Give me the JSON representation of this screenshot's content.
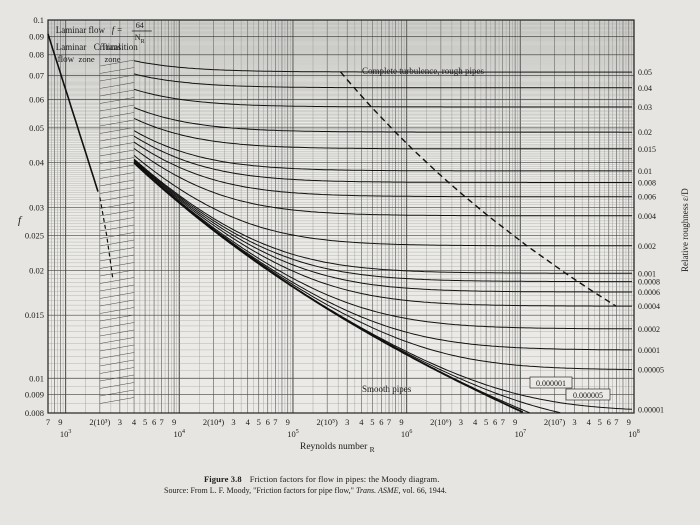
{
  "chart_data": {
    "type": "line",
    "title": "",
    "xlabel": "Reynolds number N_R",
    "xlabel_main": "Reynolds number ",
    "xlabel_sub": "R",
    "ylabel": "f",
    "right_label": "Relative roughness ε/D",
    "x_scale": "log",
    "y_scale": "log",
    "xlim": [
      700,
      100000000
    ],
    "ylim": [
      0.008,
      0.1
    ],
    "grid": true,
    "y_ticks": [
      {
        "value": 0.1,
        "label": "0.1"
      },
      {
        "value": 0.09,
        "label": "0.09"
      },
      {
        "value": 0.08,
        "label": "0.08"
      },
      {
        "value": 0.07,
        "label": "0.07"
      },
      {
        "value": 0.06,
        "label": "0.06"
      },
      {
        "value": 0.05,
        "label": "0.05"
      },
      {
        "value": 0.04,
        "label": "0.04"
      },
      {
        "value": 0.03,
        "label": "0.03"
      },
      {
        "value": 0.025,
        "label": "0.025"
      },
      {
        "value": 0.02,
        "label": "0.02"
      },
      {
        "value": 0.015,
        "label": "0.015"
      },
      {
        "value": 0.01,
        "label": "0.01"
      },
      {
        "value": 0.009,
        "label": "0.009"
      },
      {
        "value": 0.008,
        "label": "0.008"
      }
    ],
    "x_decade_labels": [
      {
        "value": 1000,
        "base": "10",
        "exp": "3"
      },
      {
        "value": 10000,
        "base": "10",
        "exp": "4"
      },
      {
        "value": 100000,
        "base": "10",
        "exp": "5"
      },
      {
        "value": 1000000,
        "base": "10",
        "exp": "6"
      },
      {
        "value": 10000000,
        "base": "10",
        "exp": "7"
      },
      {
        "value": 100000000,
        "base": "10",
        "exp": "8"
      }
    ],
    "x_minor_labels": [
      {
        "value": 700,
        "label": "7"
      },
      {
        "value": 900,
        "label": "9"
      },
      {
        "value": 2000,
        "label": "2(10³)"
      },
      {
        "value": 3000,
        "label": "3"
      },
      {
        "value": 4000,
        "label": "4"
      },
      {
        "value": 5000,
        "label": "5"
      },
      {
        "value": 6000,
        "label": "6"
      },
      {
        "value": 7000,
        "label": "7"
      },
      {
        "value": 9000,
        "label": "9"
      },
      {
        "value": 20000,
        "label": "2(10⁴)"
      },
      {
        "value": 30000,
        "label": "3"
      },
      {
        "value": 40000,
        "label": "4"
      },
      {
        "value": 50000,
        "label": "5"
      },
      {
        "value": 60000,
        "label": "6"
      },
      {
        "value": 70000,
        "label": "7"
      },
      {
        "value": 90000,
        "label": "9"
      },
      {
        "value": 200000,
        "label": "2(10⁵)"
      },
      {
        "value": 300000,
        "label": "3"
      },
      {
        "value": 400000,
        "label": "4"
      },
      {
        "value": 500000,
        "label": "5"
      },
      {
        "value": 600000,
        "label": "6"
      },
      {
        "value": 700000,
        "label": "7"
      },
      {
        "value": 900000,
        "label": "9"
      },
      {
        "value": 2000000,
        "label": "2(10⁶)"
      },
      {
        "value": 3000000,
        "label": "3"
      },
      {
        "value": 4000000,
        "label": "4"
      },
      {
        "value": 5000000,
        "label": "5"
      },
      {
        "value": 6000000,
        "label": "6"
      },
      {
        "value": 7000000,
        "label": "7"
      },
      {
        "value": 9000000,
        "label": "9"
      },
      {
        "value": 20000000,
        "label": "2(10⁷)"
      },
      {
        "value": 30000000,
        "label": "3"
      },
      {
        "value": 40000000,
        "label": "4"
      },
      {
        "value": 50000000,
        "label": "5"
      },
      {
        "value": 60000000,
        "label": "6"
      },
      {
        "value": 70000000,
        "label": "7"
      },
      {
        "value": 90000000,
        "label": "9"
      }
    ],
    "roughness_labels": [
      {
        "value": 0.05,
        "label": "0.05"
      },
      {
        "value": 0.04,
        "label": "0.04"
      },
      {
        "value": 0.03,
        "label": "0.03"
      },
      {
        "value": 0.02,
        "label": "0.02"
      },
      {
        "value": 0.015,
        "label": "0.015"
      },
      {
        "value": 0.01,
        "label": "0.01"
      },
      {
        "value": 0.008,
        "label": "0.008"
      },
      {
        "value": 0.006,
        "label": "0.006"
      },
      {
        "value": 0.004,
        "label": "0.004"
      },
      {
        "value": 0.002,
        "label": "0.002"
      },
      {
        "value": 0.001,
        "label": "0.001"
      },
      {
        "value": 0.0008,
        "label": "0.0008"
      },
      {
        "value": 0.0006,
        "label": "0.0006"
      },
      {
        "value": 0.0004,
        "label": "0.0004"
      },
      {
        "value": 0.0002,
        "label": "0.0002"
      },
      {
        "value": 0.0001,
        "label": "0.0001"
      },
      {
        "value": 5e-05,
        "label": "0.00005"
      },
      {
        "value": 1e-05,
        "label": "0.00001"
      }
    ],
    "curve_roughness_values": [
      0.05,
      0.04,
      0.03,
      0.02,
      0.015,
      0.01,
      0.008,
      0.006,
      0.004,
      0.002,
      0.001,
      0.0008,
      0.0006,
      0.0004,
      0.0002,
      0.0001,
      5e-05,
      1e-05,
      5e-06,
      1e-06
    ],
    "laminar_equation": "f = 64 / N_R",
    "annotations": {
      "laminar_flow": "Laminar flow",
      "f_equals": "f =",
      "frac_num": "64",
      "frac_den": "N",
      "frac_den_sub": "R",
      "laminar": "Laminar",
      "critical": "Critical",
      "transition": "Transition",
      "flow": "flow",
      "zone_1": "zone",
      "zone_2": "zone",
      "complete_turbulence": "Complete turbulence, rough pipes",
      "smooth_pipes": "Smooth pipes",
      "box_000001": "0.000001",
      "box_0000005": "0.000005"
    }
  },
  "caption": {
    "figure_label": "Figure 3.8",
    "text": "Friction factors for flow in pipes: the Moody diagram.",
    "source_prefix": "Source: From L. F. Moody, \"Friction factors for pipe flow,\"",
    "source_journal": "Trans. ASME,",
    "source_suffix": "vol. 66, 1944."
  }
}
